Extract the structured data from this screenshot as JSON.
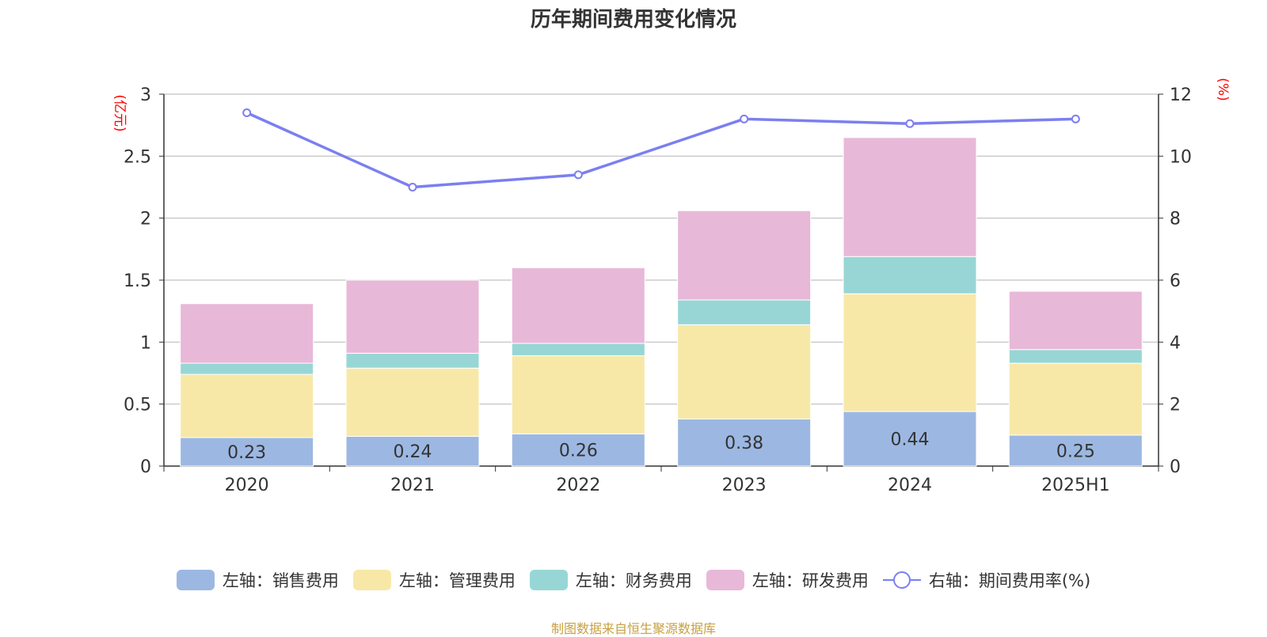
{
  "title": "历年期间费用变化情况",
  "footer": "制图数据来自恒生聚源数据库",
  "chart_data": {
    "type": "bar",
    "stacked": true,
    "categories": [
      "2020",
      "2021",
      "2022",
      "2023",
      "2024",
      "2025H1"
    ],
    "left_axis": {
      "unit": "(亿元)",
      "ylim": [
        0,
        3
      ],
      "ticks": [
        "0",
        "0.5",
        "1",
        "1.5",
        "2",
        "2.5",
        "3"
      ]
    },
    "right_axis": {
      "unit": "(%)",
      "ylim": [
        0,
        12
      ],
      "ticks": [
        "0",
        "2",
        "4",
        "6",
        "8",
        "10",
        "12"
      ]
    },
    "grid": true,
    "legend_position": "bottom",
    "series": [
      {
        "name": "左轴：销售费用",
        "axis": "left",
        "type": "bar",
        "color": "#9cb8e2",
        "values": [
          0.23,
          0.24,
          0.26,
          0.38,
          0.44,
          0.25
        ],
        "show_labels": true
      },
      {
        "name": "左轴：管理费用",
        "axis": "left",
        "type": "bar",
        "color": "#f8e8a8",
        "values": [
          0.51,
          0.55,
          0.63,
          0.76,
          0.95,
          0.58
        ]
      },
      {
        "name": "左轴：财务费用",
        "axis": "left",
        "type": "bar",
        "color": "#98d6d6",
        "values": [
          0.09,
          0.12,
          0.1,
          0.2,
          0.3,
          0.11
        ]
      },
      {
        "name": "左轴：研发费用",
        "axis": "left",
        "type": "bar",
        "color": "#e8b8d8",
        "values": [
          0.48,
          0.59,
          0.61,
          0.72,
          0.96,
          0.47
        ]
      },
      {
        "name": "右轴：期间费用率(%)",
        "axis": "right",
        "type": "line",
        "color": "#7b7ff0",
        "values": [
          11.4,
          9.0,
          9.4,
          11.2,
          11.05,
          11.2
        ]
      }
    ]
  }
}
